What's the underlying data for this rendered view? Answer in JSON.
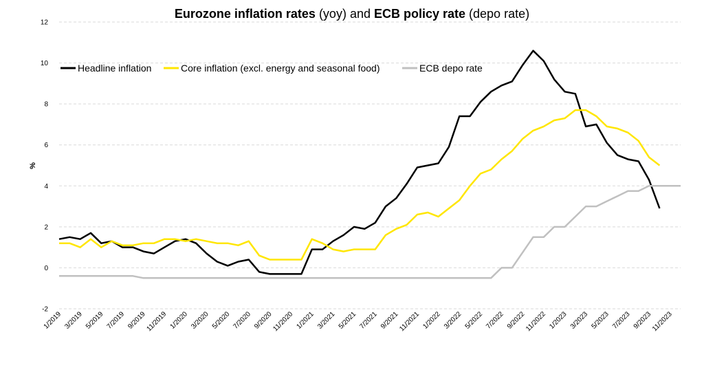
{
  "chart_data": {
    "type": "line",
    "title": {
      "part1_bold": "Eurozone inflation rates",
      "part2": " (yoy) and ",
      "part3_bold": "ECB policy rate",
      "part4": " (depo rate)"
    },
    "ylabel": "%",
    "xlabel": "",
    "ylim": [
      -2,
      12
    ],
    "yticks": [
      "-2",
      "0",
      "2",
      "4",
      "6",
      "8",
      "10",
      "12"
    ],
    "ytick_values": [
      -2,
      0,
      2,
      4,
      6,
      8,
      10,
      12
    ],
    "xtick_labels": [
      "1/2019",
      "3/2019",
      "5/2019",
      "7/2019",
      "9/2019",
      "11/2019",
      "1/2020",
      "3/2020",
      "5/2020",
      "7/2020",
      "9/2020",
      "11/2020",
      "1/2021",
      "3/2021",
      "5/2021",
      "7/2021",
      "9/2021",
      "11/2021",
      "1/2022",
      "3/2022",
      "5/2022",
      "7/2022",
      "9/2022",
      "11/2022",
      "1/2023",
      "3/2023",
      "5/2023",
      "7/2023",
      "9/2023",
      "11/2023"
    ],
    "grid": "horizontal dashed",
    "legend_position": "top-left",
    "months": [
      "1/2019",
      "2/2019",
      "3/2019",
      "4/2019",
      "5/2019",
      "6/2019",
      "7/2019",
      "8/2019",
      "9/2019",
      "10/2019",
      "11/2019",
      "12/2019",
      "1/2020",
      "2/2020",
      "3/2020",
      "4/2020",
      "5/2020",
      "6/2020",
      "7/2020",
      "8/2020",
      "9/2020",
      "10/2020",
      "11/2020",
      "12/2020",
      "1/2021",
      "2/2021",
      "3/2021",
      "4/2021",
      "5/2021",
      "6/2021",
      "7/2021",
      "8/2021",
      "9/2021",
      "10/2021",
      "11/2021",
      "12/2021",
      "1/2022",
      "2/2022",
      "3/2022",
      "4/2022",
      "5/2022",
      "6/2022",
      "7/2022",
      "8/2022",
      "9/2022",
      "10/2022",
      "11/2022",
      "12/2022",
      "1/2023",
      "2/2023",
      "3/2023",
      "4/2023",
      "5/2023",
      "6/2023",
      "7/2023",
      "8/2023",
      "9/2023",
      "10/2023",
      "11/2023",
      "12/2023"
    ],
    "series": [
      {
        "name": "Headline inflation",
        "color": "#000000",
        "values": [
          1.4,
          1.5,
          1.4,
          1.7,
          1.2,
          1.3,
          1.0,
          1.0,
          0.8,
          0.7,
          1.0,
          1.3,
          1.4,
          1.2,
          0.7,
          0.3,
          0.1,
          0.3,
          0.4,
          -0.2,
          -0.3,
          -0.3,
          -0.3,
          -0.3,
          0.9,
          0.9,
          1.3,
          1.6,
          2.0,
          1.9,
          2.2,
          3.0,
          3.4,
          4.1,
          4.9,
          5.0,
          5.1,
          5.9,
          7.4,
          7.4,
          8.1,
          8.6,
          8.9,
          9.1,
          9.9,
          10.6,
          10.1,
          9.2,
          8.6,
          8.5,
          6.9,
          7.0,
          6.1,
          5.5,
          5.3,
          5.2,
          4.3,
          2.9,
          null,
          null
        ]
      },
      {
        "name": "Core inflation (excl. energy and seasonal food)",
        "color": "#FFE600",
        "values": [
          1.2,
          1.2,
          1.0,
          1.4,
          1.0,
          1.3,
          1.1,
          1.1,
          1.2,
          1.2,
          1.4,
          1.4,
          1.3,
          1.4,
          1.3,
          1.2,
          1.2,
          1.1,
          1.3,
          0.6,
          0.4,
          0.4,
          0.4,
          0.4,
          1.4,
          1.2,
          0.9,
          0.8,
          0.9,
          0.9,
          0.9,
          1.6,
          1.9,
          2.1,
          2.6,
          2.7,
          2.5,
          2.9,
          3.3,
          4.0,
          4.6,
          4.8,
          5.3,
          5.7,
          6.3,
          6.7,
          6.9,
          7.2,
          7.3,
          7.7,
          7.7,
          7.4,
          6.9,
          6.8,
          6.6,
          6.2,
          5.4,
          5.0,
          null,
          null
        ]
      },
      {
        "name": "ECB depo rate",
        "color": "#C0C0C0",
        "values": [
          -0.4,
          -0.4,
          -0.4,
          -0.4,
          -0.4,
          -0.4,
          -0.4,
          -0.4,
          -0.5,
          -0.5,
          -0.5,
          -0.5,
          -0.5,
          -0.5,
          -0.5,
          -0.5,
          -0.5,
          -0.5,
          -0.5,
          -0.5,
          -0.5,
          -0.5,
          -0.5,
          -0.5,
          -0.5,
          -0.5,
          -0.5,
          -0.5,
          -0.5,
          -0.5,
          -0.5,
          -0.5,
          -0.5,
          -0.5,
          -0.5,
          -0.5,
          -0.5,
          -0.5,
          -0.5,
          -0.5,
          -0.5,
          -0.5,
          0.0,
          0.0,
          0.75,
          1.5,
          1.5,
          2.0,
          2.0,
          2.5,
          3.0,
          3.0,
          3.25,
          3.5,
          3.75,
          3.75,
          4.0,
          4.0,
          4.0,
          4.0
        ]
      }
    ]
  }
}
